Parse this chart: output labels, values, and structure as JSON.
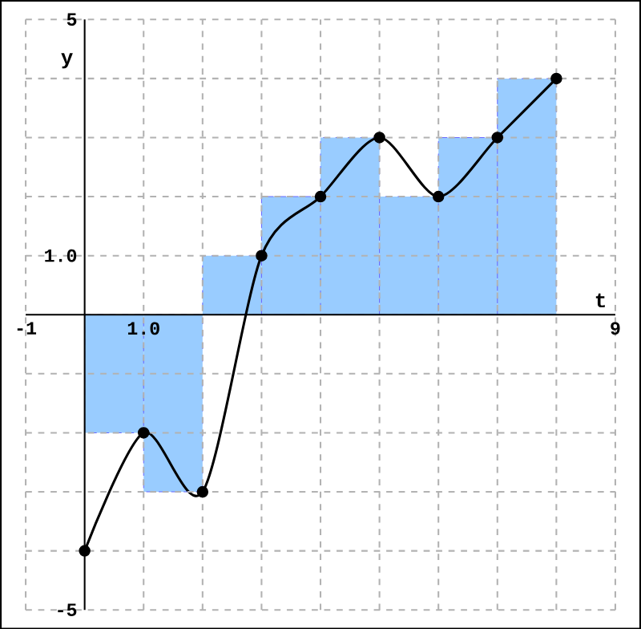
{
  "chart_data": {
    "type": "line",
    "xlabel": "t",
    "ylabel": "y",
    "xlim": [
      -1,
      9
    ],
    "ylim": [
      -5,
      5
    ],
    "xticks": [
      -1,
      {
        "value": 0,
        "label": null
      },
      {
        "value": 1,
        "label": "1.0"
      },
      {
        "value": 2,
        "label": null
      },
      {
        "value": 3,
        "label": null
      },
      {
        "value": 4,
        "label": null
      },
      {
        "value": 5,
        "label": null
      },
      {
        "value": 6,
        "label": null
      },
      {
        "value": 7,
        "label": null
      },
      {
        "value": 8,
        "label": null
      },
      9
    ],
    "yticks": [
      -5,
      {
        "value": -4,
        "label": null
      },
      {
        "value": -3,
        "label": null
      },
      {
        "value": -2,
        "label": null
      },
      {
        "value": -1,
        "label": null
      },
      {
        "value": 0,
        "label": null
      },
      {
        "value": 1,
        "label": "1.0"
      },
      {
        "value": 2,
        "label": null
      },
      {
        "value": 3,
        "label": null
      },
      {
        "value": 4,
        "label": null
      },
      5
    ],
    "grid": true,
    "series": [
      {
        "type": "bar",
        "color": "#99ccff",
        "x": [
          0.5,
          1.5,
          2.5,
          3.5,
          4.5,
          5.5,
          6.5,
          7.5
        ],
        "values": [
          -2,
          -3,
          1,
          2,
          3,
          2,
          3,
          4
        ]
      },
      {
        "color": "#000000",
        "marker": "circle",
        "x": [
          0,
          1,
          2,
          3,
          4,
          5,
          6,
          7,
          8
        ],
        "values": [
          -4,
          -2,
          -3,
          1,
          2,
          3,
          2,
          3,
          4
        ]
      }
    ]
  }
}
